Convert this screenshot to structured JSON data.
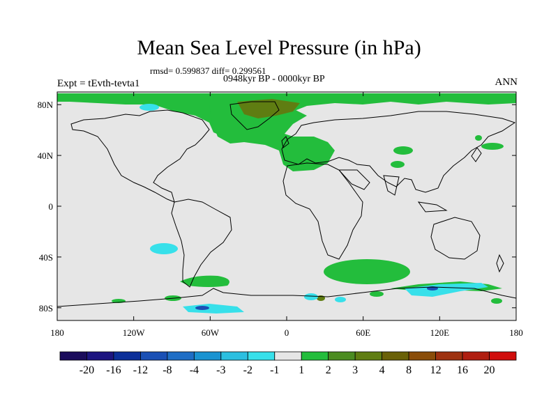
{
  "title": "Mean Sea Level Pressure (in hPa)",
  "stats": "rmsd= 0.599837 diff= 0.299561",
  "experiment": "Expt = tEvth-tevta1",
  "period": "0948kyr BP - 0000kyr BP",
  "season": "ANN",
  "axes": {
    "lat_labels": [
      {
        "lat": 80,
        "text": "80N"
      },
      {
        "lat": 40,
        "text": "40N"
      },
      {
        "lat": 0,
        "text": "0"
      },
      {
        "lat": -40,
        "text": "40S"
      },
      {
        "lat": -80,
        "text": "80S"
      }
    ],
    "lon_labels": [
      {
        "lon": -180,
        "text": "180"
      },
      {
        "lon": -120,
        "text": "120W"
      },
      {
        "lon": -60,
        "text": "60W"
      },
      {
        "lon": 0,
        "text": "0"
      },
      {
        "lon": 60,
        "text": "60E"
      },
      {
        "lon": 120,
        "text": "120E"
      },
      {
        "lon": 180,
        "text": "180"
      }
    ]
  },
  "colorbar": {
    "colors": [
      "#1b0c5c",
      "#1d1580",
      "#0c2f99",
      "#1a50b5",
      "#1f6ec5",
      "#1a93d1",
      "#2bbfe0",
      "#37e0ea",
      "#e6e6e6",
      "#23bd3c",
      "#4b8c21",
      "#5f7d12",
      "#6a6108",
      "#8a4d09",
      "#9e3210",
      "#b01e10",
      "#d00d0c"
    ],
    "labels": [
      "-20",
      "-16",
      "-12",
      "-8",
      "-4",
      "-3",
      "-2",
      "-1",
      "1",
      "2",
      "3",
      "4",
      "8",
      "12",
      "16",
      "20"
    ]
  },
  "map_colors": {
    "background": "#e6e6e6",
    "green": "#23bd3c",
    "olive": "#5f7d12",
    "cyan": "#37e0ea",
    "light_blue": "#2bbfe0",
    "blue": "#1a50b5",
    "coast": "#000000"
  }
}
